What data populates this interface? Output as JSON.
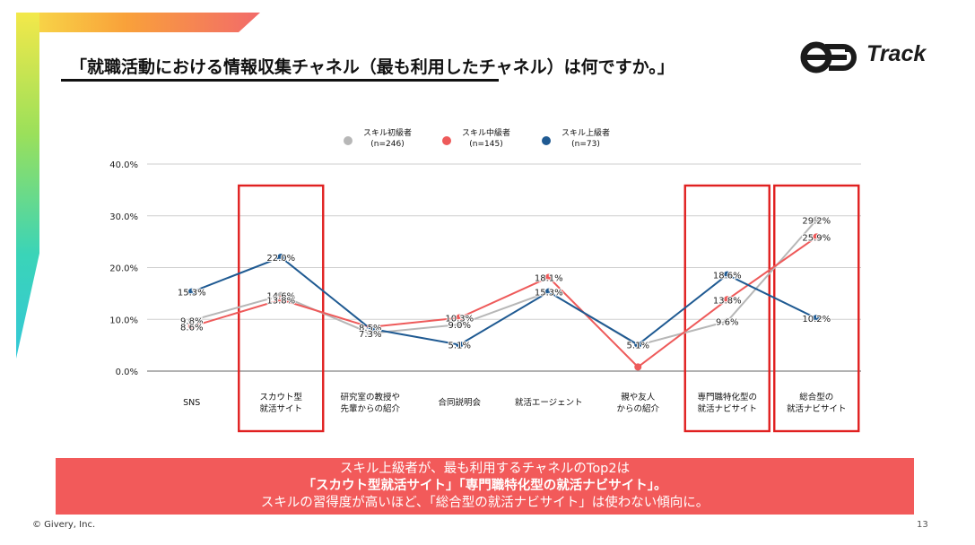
{
  "title": "「就職活動における情報収集チャネル（最も利用したチャネル）は何ですか。」",
  "logo": {
    "text": "Track"
  },
  "footer": {
    "copyright": "© Givery, Inc.",
    "page": "13"
  },
  "banner": {
    "line1": "スキル上級者が、最も利用するチャネルのTop2は",
    "line2": "「スカウト型就活サイト」「専門職特化型の就活ナビサイト」。",
    "line3": "スキルの習得度が高いほど、「総合型の就活ナビサイト」は使わない傾向に。"
  },
  "colors": {
    "beginner": "#b7b7b7",
    "intermediate": "#ee5a5a",
    "advanced": "#1f5a92",
    "highlight": "#e02020",
    "banner": "#f25a5a"
  },
  "chart_data": {
    "type": "line",
    "categories": [
      [
        "SNS"
      ],
      [
        "スカウト型",
        "就活サイト"
      ],
      [
        "研究室の教授や",
        "先輩からの紹介"
      ],
      [
        "合同説明会"
      ],
      [
        "就活エージェント"
      ],
      [
        "親や友人",
        "からの紹介"
      ],
      [
        "専門職特化型の",
        "就活ナビサイト"
      ],
      [
        "総合型の",
        "就活ナビサイト"
      ]
    ],
    "series": [
      {
        "name": "スキル初級者",
        "n": "(n=246)",
        "values": [
          9.8,
          14.6,
          7.3,
          9.0,
          15.3,
          5.0,
          9.6,
          29.2
        ]
      },
      {
        "name": "スキル中級者",
        "n": "(n=145)",
        "values": [
          8.6,
          13.8,
          8.5,
          10.3,
          18.1,
          0.8,
          13.8,
          25.9
        ]
      },
      {
        "name": "スキル上級者",
        "n": "(n=73)",
        "values": [
          15.3,
          22.0,
          8.2,
          5.1,
          15.3,
          5.1,
          18.6,
          10.2
        ]
      }
    ],
    "data_labels": [
      {
        "series": 0,
        "index": 0,
        "text": "9.8%"
      },
      {
        "series": 1,
        "index": 0,
        "text": "8.6%"
      },
      {
        "series": 2,
        "index": 0,
        "text": "15.3%"
      },
      {
        "series": 0,
        "index": 1,
        "text": "14.6%"
      },
      {
        "series": 1,
        "index": 1,
        "text": "13.8%"
      },
      {
        "series": 2,
        "index": 1,
        "text": "22.0%"
      },
      {
        "series": 1,
        "index": 2,
        "text": "8.5%"
      },
      {
        "series": 0,
        "index": 2,
        "text": "7.3%"
      },
      {
        "series": 1,
        "index": 3,
        "text": "10.3%"
      },
      {
        "series": 0,
        "index": 3,
        "text": "9.0%"
      },
      {
        "series": 2,
        "index": 3,
        "text": "5.1%"
      },
      {
        "series": 1,
        "index": 4,
        "text": "18.1%"
      },
      {
        "series": 2,
        "index": 4,
        "text": "15.3%"
      },
      {
        "series": 2,
        "index": 5,
        "text": "5.1%"
      },
      {
        "series": 2,
        "index": 6,
        "text": "18.6%"
      },
      {
        "series": 1,
        "index": 6,
        "text": "13.8%"
      },
      {
        "series": 0,
        "index": 6,
        "text": "9.6%"
      },
      {
        "series": 0,
        "index": 7,
        "text": "29.2%"
      },
      {
        "series": 1,
        "index": 7,
        "text": "25.9%"
      },
      {
        "series": 2,
        "index": 7,
        "text": "10.2%"
      }
    ],
    "yticks": [
      "40.0%",
      "30.0%",
      "20.0%",
      "10.0%",
      "0.0%"
    ],
    "ylim": [
      0,
      40
    ],
    "grid": true,
    "legend": "top-center",
    "highlighted_categories": [
      1,
      6,
      7
    ]
  }
}
